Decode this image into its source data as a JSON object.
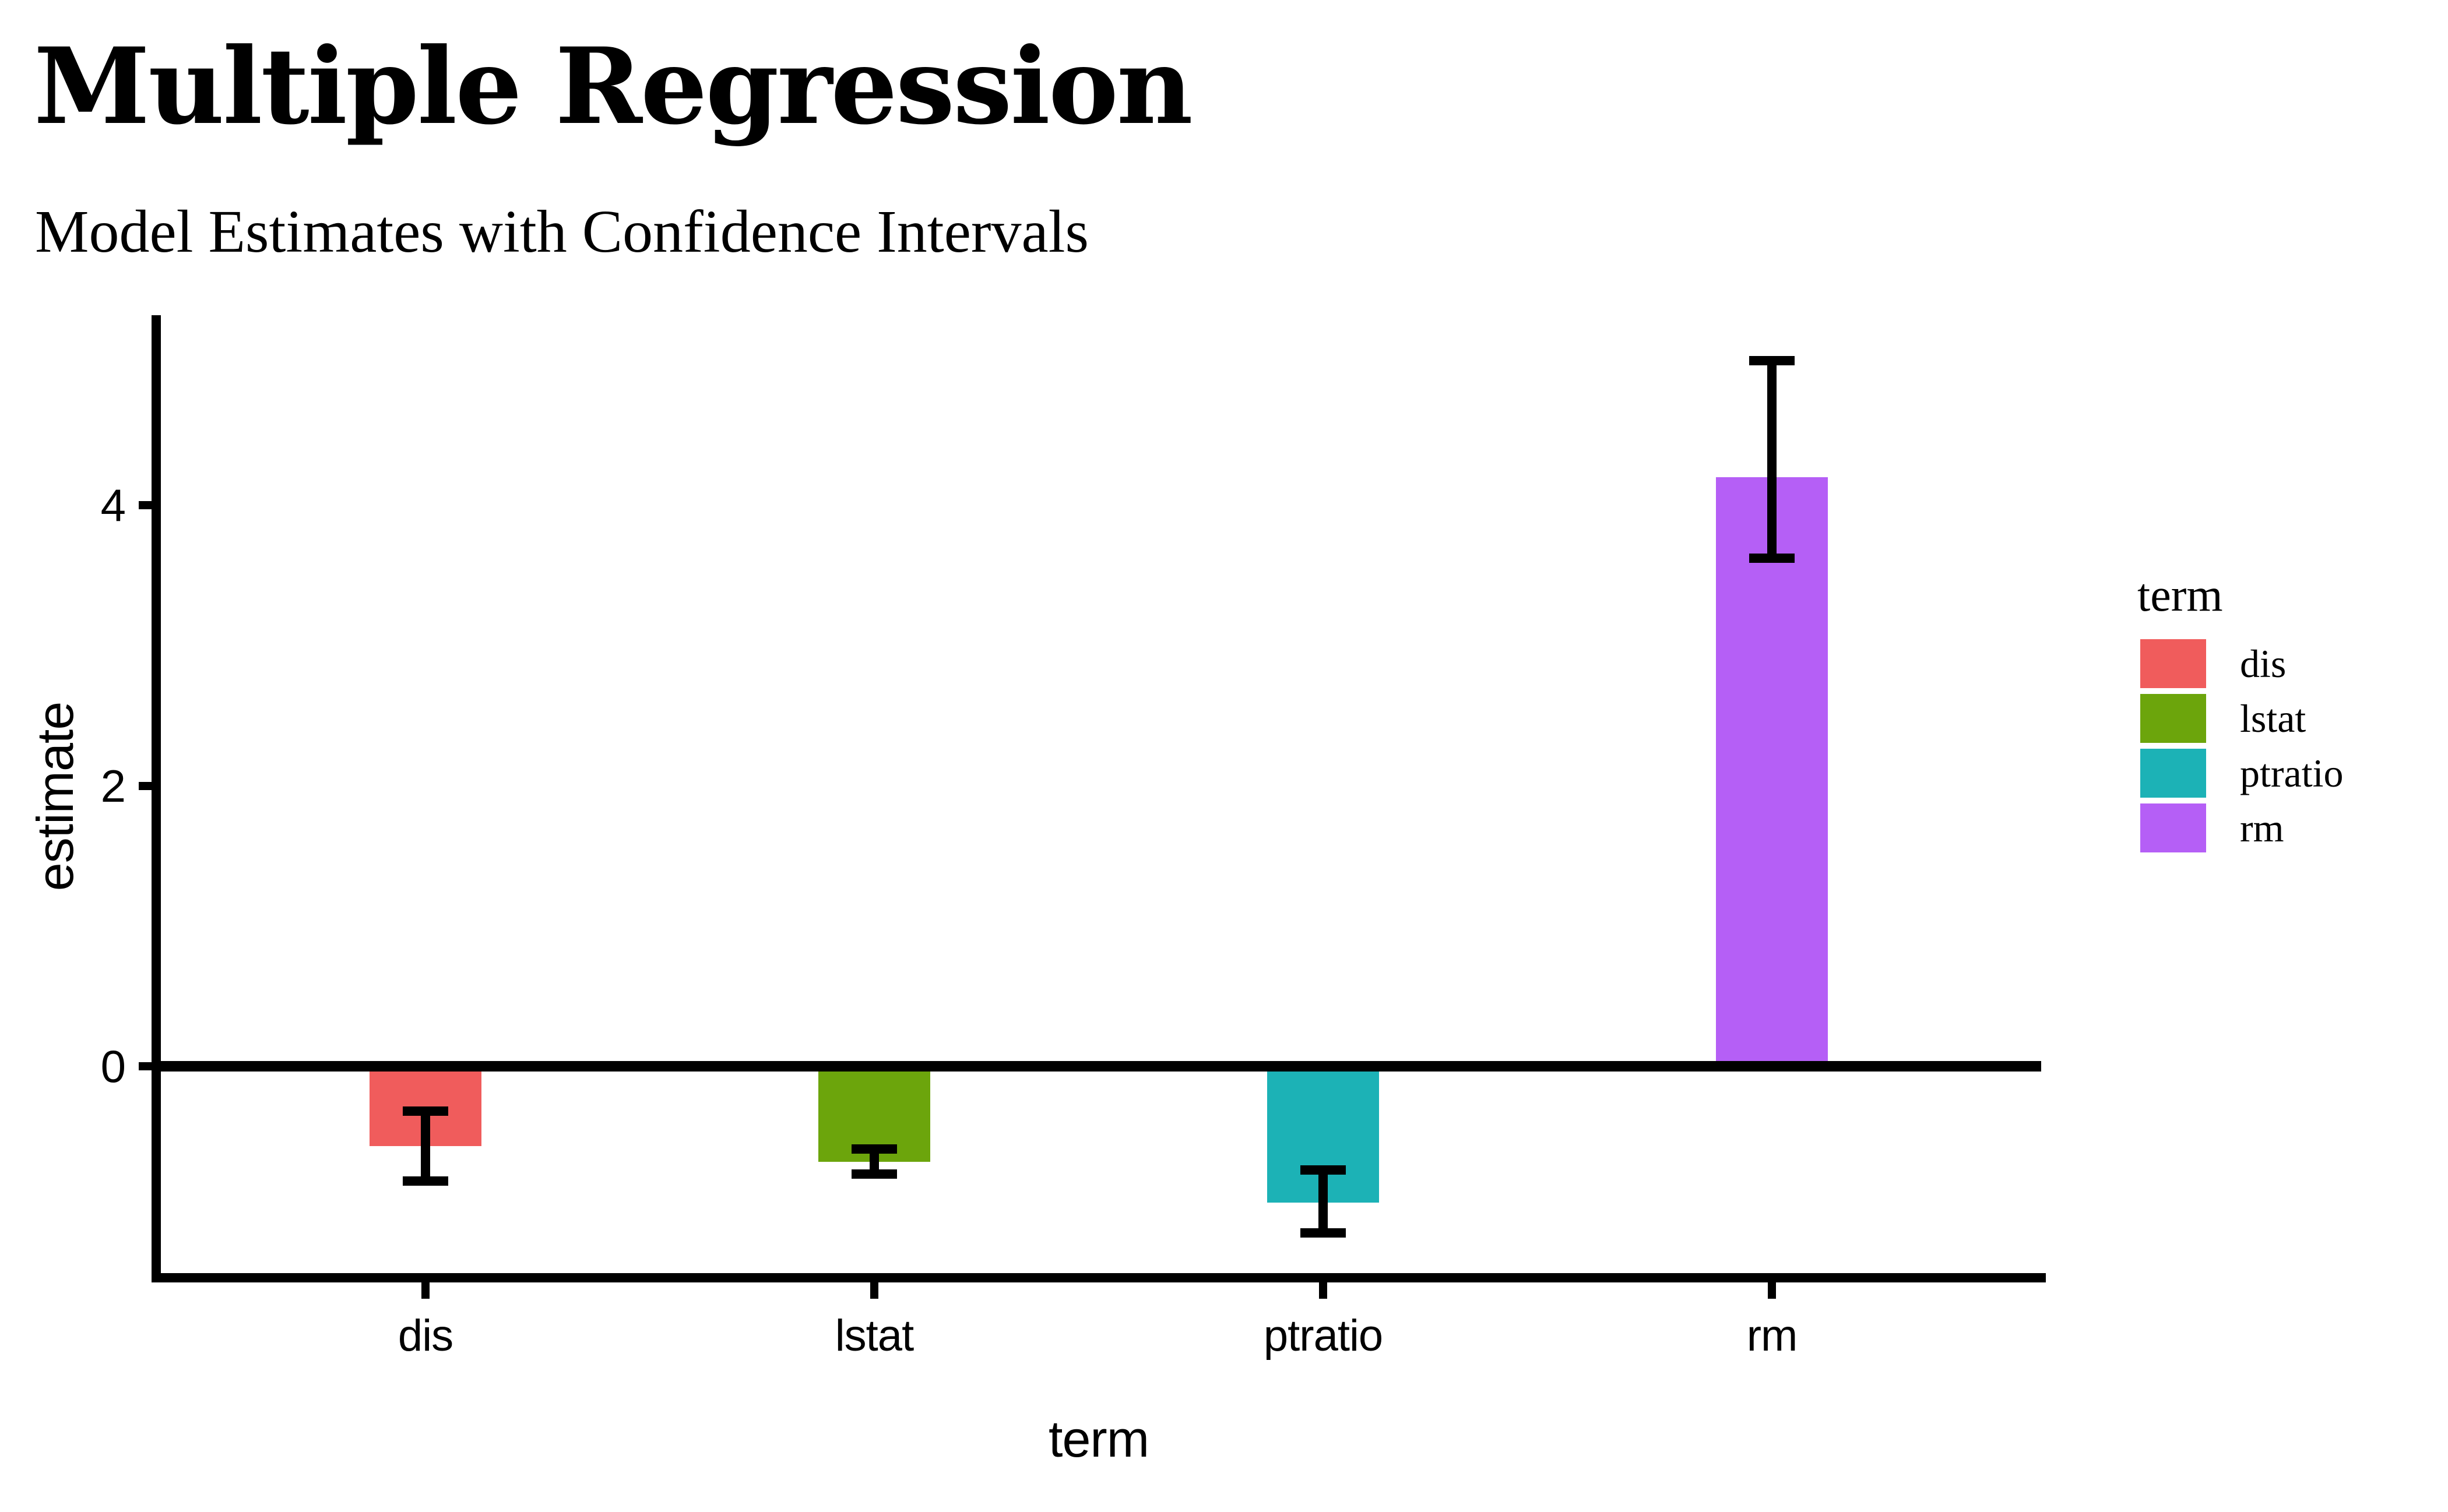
{
  "header": {
    "title": "Multiple Regression",
    "subtitle": "Model Estimates with Confidence Intervals"
  },
  "chart_data": {
    "type": "bar",
    "title": "Multiple Regression",
    "subtitle": "Model Estimates with Confidence Intervals",
    "xlabel": "term",
    "ylabel": "estimate",
    "categories": [
      "dis",
      "lstat",
      "ptratio",
      "rm"
    ],
    "series": [
      {
        "name": "estimate",
        "values": [
          -0.57,
          -0.68,
          -0.97,
          4.2
        ]
      }
    ],
    "values": [
      -0.57,
      -0.68,
      -0.97,
      4.2
    ],
    "conf_low": [
      -0.82,
      -0.77,
      -1.19,
      3.62
    ],
    "conf_high": [
      -0.32,
      -0.59,
      -0.74,
      5.03
    ],
    "bar_colors": [
      "#F05C5C",
      "#6CA50C",
      "#1CB2B6",
      "#B55FF6"
    ],
    "y_ticks": [
      0,
      2,
      4
    ],
    "ylim": [
      -1.51,
      5.35
    ],
    "grid": false,
    "zero_line": true,
    "legend_title": "term",
    "legend_position": "right",
    "legend_entries": [
      {
        "label": "dis",
        "color": "#F05C5C"
      },
      {
        "label": "lstat",
        "color": "#6CA50C"
      },
      {
        "label": "ptratio",
        "color": "#1CB2B6"
      },
      {
        "label": "rm",
        "color": "#B55FF6"
      }
    ]
  }
}
